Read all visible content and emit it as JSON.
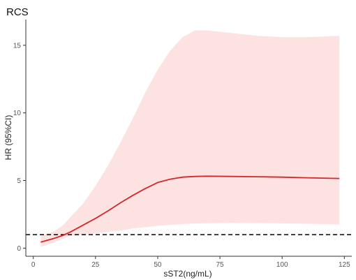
{
  "chart_data": {
    "type": "line",
    "title": "RCS",
    "xlabel": "sST2(ng/mL)",
    "ylabel": "HR (95%CI)",
    "xlim": [
      -3,
      128
    ],
    "ylim": [
      -0.6,
      16.9
    ],
    "x_ticks": [
      0,
      25,
      50,
      75,
      100,
      125
    ],
    "y_ticks": [
      0,
      5,
      10,
      15
    ],
    "grid": false,
    "legend": "none",
    "reference_line": {
      "y": 1,
      "style": "dashed",
      "color": "#000000"
    },
    "series": [
      {
        "type": "line",
        "color": "#d62728",
        "x": [
          3,
          8,
          12,
          15,
          20,
          25,
          30,
          35,
          40,
          45,
          50,
          55,
          60,
          65,
          70,
          80,
          90,
          100,
          110,
          123
        ],
        "y": [
          0.45,
          0.7,
          0.95,
          1.2,
          1.7,
          2.2,
          2.75,
          3.35,
          3.9,
          4.4,
          4.85,
          5.1,
          5.25,
          5.3,
          5.32,
          5.3,
          5.28,
          5.25,
          5.2,
          5.15
        ]
      },
      {
        "type": "band",
        "name": "95% CI",
        "color": "#fde2e2",
        "x": [
          3,
          8,
          12,
          15,
          20,
          25,
          30,
          35,
          40,
          45,
          50,
          55,
          60,
          65,
          70,
          80,
          90,
          100,
          110,
          123
        ],
        "lower": [
          0.1,
          0.4,
          0.7,
          0.9,
          1.0,
          1.1,
          1.2,
          1.3,
          1.45,
          1.55,
          1.65,
          1.72,
          1.78,
          1.82,
          1.84,
          1.86,
          1.85,
          1.83,
          1.8,
          1.75
        ],
        "upper": [
          0.9,
          1.2,
          1.7,
          2.3,
          3.3,
          4.6,
          6.1,
          7.8,
          9.6,
          11.5,
          13.2,
          14.6,
          15.6,
          16.1,
          16.1,
          15.9,
          15.7,
          15.6,
          15.6,
          15.7
        ]
      }
    ]
  }
}
